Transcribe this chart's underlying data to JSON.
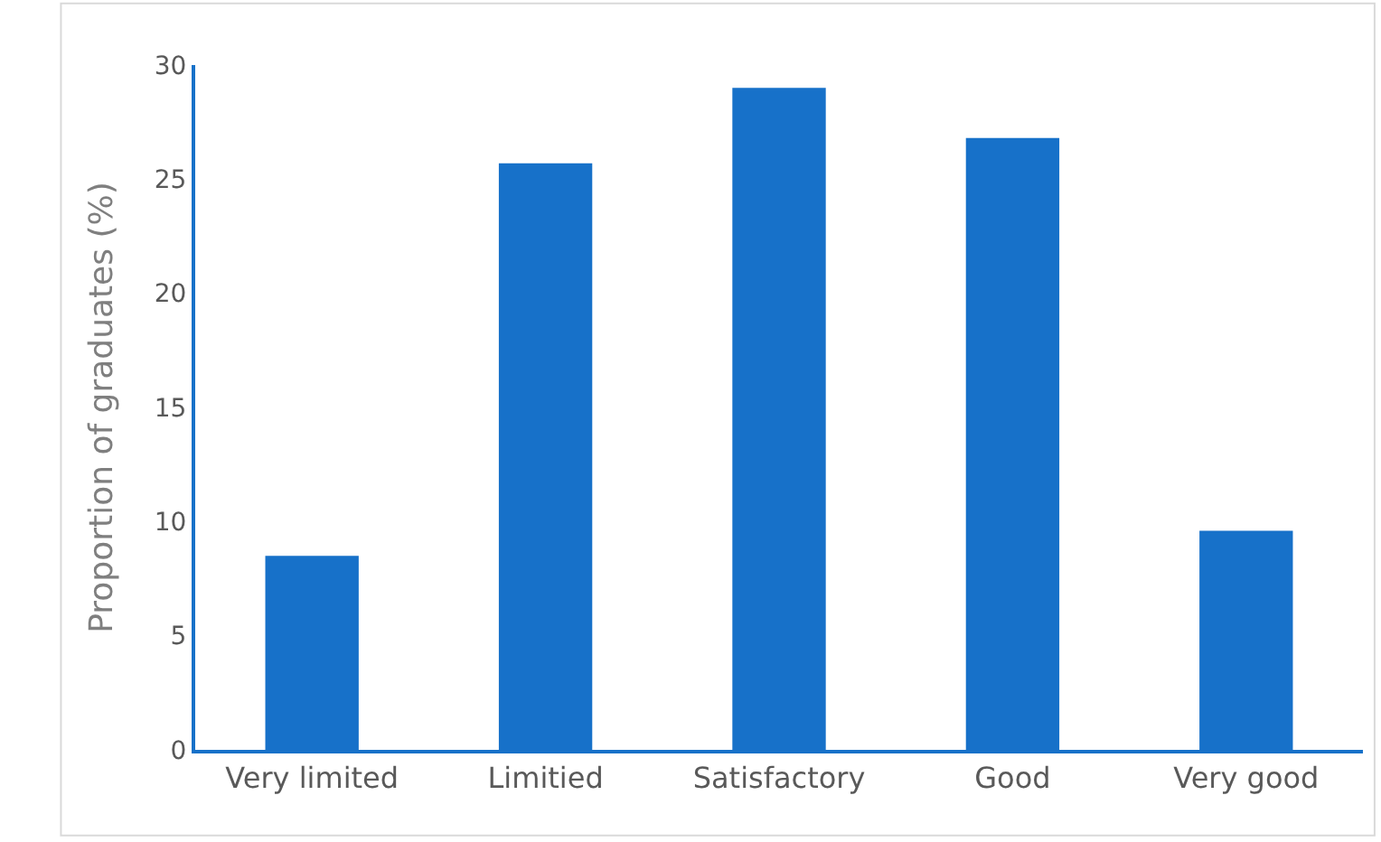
{
  "chart_data": {
    "type": "bar",
    "ylabel": "Proportion of graduates (%)",
    "categories": [
      "Very limited",
      "Limitied",
      "Satisfactory",
      "Good",
      "Very good"
    ],
    "values": [
      8.5,
      25.7,
      29.0,
      26.8,
      9.6
    ],
    "color": "#1771c9",
    "ylim": [
      0,
      30
    ],
    "yticks": [
      0,
      5,
      10,
      15,
      20,
      25,
      30
    ]
  }
}
